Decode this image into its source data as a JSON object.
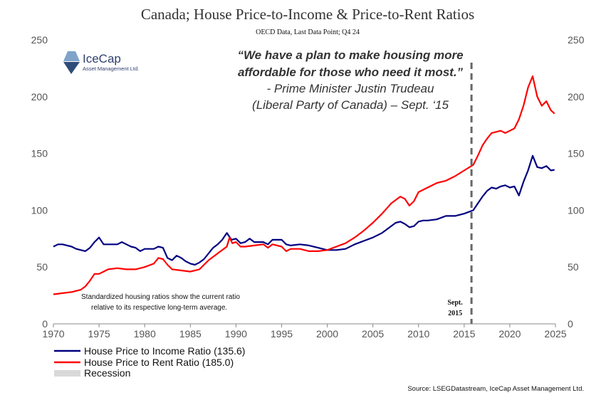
{
  "chart_data": {
    "type": "line",
    "title": "Canada; House Price-to-Income & Price-to-Rent Ratios",
    "subtitle": "OECD Data,  Last Data Point; Q4 24",
    "xlim": [
      1970,
      2025
    ],
    "ylim": [
      0,
      250
    ],
    "x_ticks": [
      "1970",
      "1975",
      "1980",
      "1985",
      "1990",
      "1995",
      "2000",
      "2005",
      "2010",
      "2015",
      "2020",
      "2025"
    ],
    "y_ticks": [
      "0",
      "50",
      "100",
      "150",
      "200",
      "250"
    ],
    "grid": false,
    "legend_position": "bottom-left",
    "series": [
      {
        "name": "House Price to Income Ratio (135.6)",
        "color": "#000080",
        "points": [
          [
            1970.0,
            68
          ],
          [
            1970.5,
            70
          ],
          [
            1971.0,
            70
          ],
          [
            1972.0,
            68
          ],
          [
            1972.5,
            66
          ],
          [
            1973.0,
            65
          ],
          [
            1973.5,
            64
          ],
          [
            1974.0,
            67
          ],
          [
            1974.5,
            72
          ],
          [
            1975.0,
            76
          ],
          [
            1975.5,
            70
          ],
          [
            1976.0,
            70
          ],
          [
            1977.0,
            70
          ],
          [
            1977.5,
            72
          ],
          [
            1978.0,
            70
          ],
          [
            1978.5,
            68
          ],
          [
            1979.0,
            67
          ],
          [
            1979.5,
            64
          ],
          [
            1980.0,
            66
          ],
          [
            1981.0,
            66
          ],
          [
            1981.5,
            68
          ],
          [
            1982.0,
            67
          ],
          [
            1982.5,
            58
          ],
          [
            1983.0,
            56
          ],
          [
            1983.5,
            60
          ],
          [
            1984.0,
            58
          ],
          [
            1984.5,
            55
          ],
          [
            1985.0,
            53
          ],
          [
            1985.5,
            52
          ],
          [
            1986.0,
            54
          ],
          [
            1986.5,
            57
          ],
          [
            1987.0,
            62
          ],
          [
            1987.5,
            67
          ],
          [
            1988.0,
            70
          ],
          [
            1988.5,
            74
          ],
          [
            1989.0,
            80
          ],
          [
            1989.5,
            74
          ],
          [
            1990.0,
            75
          ],
          [
            1990.5,
            71
          ],
          [
            1991.0,
            72
          ],
          [
            1991.5,
            75
          ],
          [
            1992.0,
            72
          ],
          [
            1993.0,
            72
          ],
          [
            1993.5,
            70
          ],
          [
            1994.0,
            74
          ],
          [
            1995.0,
            74
          ],
          [
            1995.5,
            70
          ],
          [
            1996.0,
            69
          ],
          [
            1997.0,
            70
          ],
          [
            1998.0,
            69
          ],
          [
            1999.0,
            67
          ],
          [
            1999.5,
            66
          ],
          [
            2000.0,
            65
          ],
          [
            2001.0,
            65
          ],
          [
            2002.0,
            66
          ],
          [
            2003.0,
            70
          ],
          [
            2004.0,
            73
          ],
          [
            2005.0,
            76
          ],
          [
            2006.0,
            80
          ],
          [
            2007.0,
            86
          ],
          [
            2007.5,
            89
          ],
          [
            2008.0,
            90
          ],
          [
            2008.5,
            88
          ],
          [
            2009.0,
            85
          ],
          [
            2009.5,
            86
          ],
          [
            2010.0,
            90
          ],
          [
            2010.5,
            91
          ],
          [
            2011.0,
            91
          ],
          [
            2012.0,
            92
          ],
          [
            2013.0,
            95
          ],
          [
            2014.0,
            95
          ],
          [
            2015.0,
            97
          ],
          [
            2016.0,
            100
          ],
          [
            2016.5,
            106
          ],
          [
            2017.0,
            112
          ],
          [
            2017.5,
            117
          ],
          [
            2018.0,
            120
          ],
          [
            2018.5,
            119
          ],
          [
            2019.0,
            121
          ],
          [
            2019.5,
            122
          ],
          [
            2020.0,
            120
          ],
          [
            2020.5,
            121
          ],
          [
            2021.0,
            113
          ],
          [
            2021.5,
            125
          ],
          [
            2022.0,
            135
          ],
          [
            2022.5,
            148
          ],
          [
            2023.0,
            138
          ],
          [
            2023.5,
            137
          ],
          [
            2024.0,
            139
          ],
          [
            2024.5,
            135
          ],
          [
            2024.9,
            135.6
          ]
        ]
      },
      {
        "name": "House Price to Rent Ratio (185.0)",
        "color": "#ff0000",
        "points": [
          [
            1970.0,
            26
          ],
          [
            1971.0,
            27
          ],
          [
            1972.0,
            28
          ],
          [
            1972.5,
            29
          ],
          [
            1973.0,
            30
          ],
          [
            1973.5,
            33
          ],
          [
            1974.0,
            38
          ],
          [
            1974.5,
            44
          ],
          [
            1975.0,
            44
          ],
          [
            1975.5,
            46
          ],
          [
            1976.0,
            48
          ],
          [
            1977.0,
            49
          ],
          [
            1978.0,
            48
          ],
          [
            1979.0,
            48
          ],
          [
            1980.0,
            50
          ],
          [
            1981.0,
            53
          ],
          [
            1981.5,
            58
          ],
          [
            1982.0,
            57
          ],
          [
            1982.5,
            52
          ],
          [
            1983.0,
            48
          ],
          [
            1984.0,
            47
          ],
          [
            1985.0,
            46
          ],
          [
            1986.0,
            48
          ],
          [
            1987.0,
            56
          ],
          [
            1988.0,
            62
          ],
          [
            1989.0,
            68
          ],
          [
            1989.3,
            76
          ],
          [
            1989.6,
            71
          ],
          [
            1990.0,
            72
          ],
          [
            1990.5,
            68
          ],
          [
            1991.0,
            68
          ],
          [
            1992.0,
            69
          ],
          [
            1993.0,
            70
          ],
          [
            1993.5,
            67
          ],
          [
            1994.0,
            70
          ],
          [
            1995.0,
            68
          ],
          [
            1995.5,
            64
          ],
          [
            1996.0,
            66
          ],
          [
            1997.0,
            66
          ],
          [
            1998.0,
            64
          ],
          [
            1999.0,
            64
          ],
          [
            2000.0,
            65
          ],
          [
            2001.0,
            68
          ],
          [
            2002.0,
            71
          ],
          [
            2003.0,
            76
          ],
          [
            2004.0,
            82
          ],
          [
            2005.0,
            89
          ],
          [
            2006.0,
            97
          ],
          [
            2007.0,
            106
          ],
          [
            2008.0,
            112
          ],
          [
            2008.5,
            110
          ],
          [
            2009.0,
            104
          ],
          [
            2009.5,
            108
          ],
          [
            2010.0,
            116
          ],
          [
            2011.0,
            120
          ],
          [
            2012.0,
            124
          ],
          [
            2013.0,
            126
          ],
          [
            2014.0,
            130
          ],
          [
            2015.0,
            135
          ],
          [
            2016.0,
            140
          ],
          [
            2016.5,
            148
          ],
          [
            2017.0,
            157
          ],
          [
            2017.5,
            163
          ],
          [
            2018.0,
            168
          ],
          [
            2019.0,
            170
          ],
          [
            2019.5,
            168
          ],
          [
            2020.0,
            170
          ],
          [
            2020.5,
            172
          ],
          [
            2021.0,
            180
          ],
          [
            2021.5,
            192
          ],
          [
            2022.0,
            208
          ],
          [
            2022.5,
            218
          ],
          [
            2023.0,
            200
          ],
          [
            2023.5,
            192
          ],
          [
            2024.0,
            196
          ],
          [
            2024.5,
            188
          ],
          [
            2024.9,
            185
          ]
        ]
      }
    ],
    "legend": [
      {
        "label": "House Price to Income Ratio (135.6)",
        "color": "#000080"
      },
      {
        "label": "House Price to Rent Ratio (185.0)",
        "color": "#ff0000"
      },
      {
        "label": "Recession",
        "color": "#d9d9d9"
      }
    ],
    "marker": {
      "x": 2015.8,
      "label_line1": "Sept.",
      "label_line2": "2015"
    },
    "quote": {
      "line1": "“We have a plan to make housing more",
      "line2": "affordable for those who need it most.”",
      "line3": "-  Prime Minister Justin Trudeau",
      "line4": "(Liberal Party of Canada) – Sept. ‘15"
    },
    "note": {
      "line1": "Standardized housing ratios show the current ratio",
      "line2": "relative to its respective long-term average."
    },
    "source": "Source: LSEGDatastream, IceCap Asset Management Ltd."
  },
  "brand": {
    "name": "IceCap",
    "sub": "Asset Management Ltd."
  }
}
